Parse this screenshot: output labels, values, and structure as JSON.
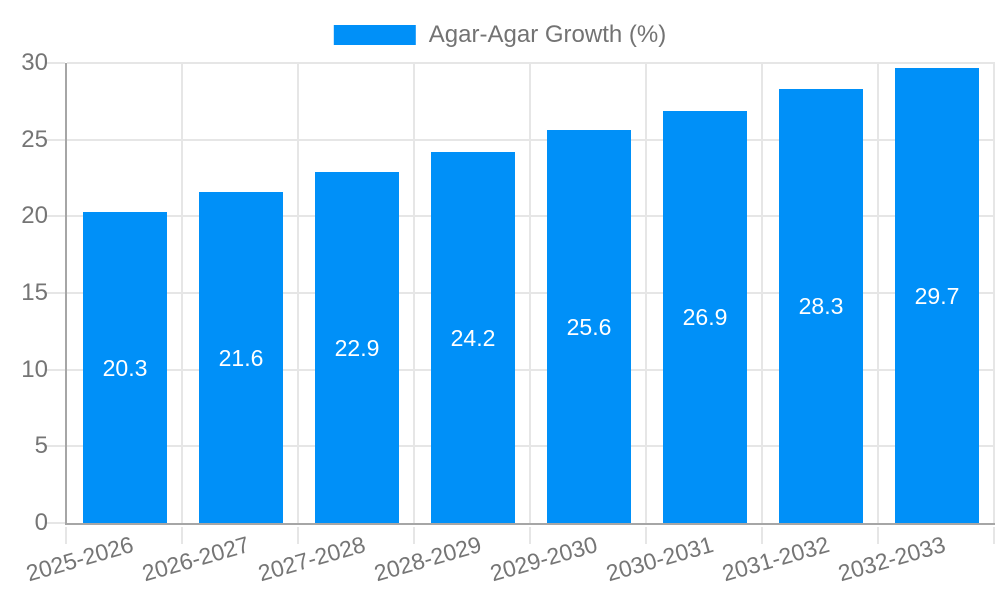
{
  "chart_data": {
    "type": "bar",
    "title": "Agar-Agar Growth (%)",
    "series_label": "Agar-Agar Growth (%)",
    "categories": [
      "2025-2026",
      "2026-2027",
      "2027-2028",
      "2028-2029",
      "2029-2030",
      "2030-2031",
      "2031-2032",
      "2032-2033"
    ],
    "values": [
      20.3,
      21.6,
      22.9,
      24.2,
      25.6,
      26.9,
      28.3,
      29.7
    ],
    "value_label_decimals": 1,
    "xlabel": "",
    "ylabel": "",
    "ylim": [
      0,
      30
    ],
    "yticks": [
      0,
      5,
      10,
      15,
      20,
      25,
      30
    ],
    "grid": true,
    "legend_position": "top-center",
    "colors": {
      "bar": "#0090f8",
      "grid": "#e6e6e6",
      "axis": "#a6a6a6",
      "tick_text": "#757575",
      "legend_text": "#737373",
      "value_text": "#ffffff"
    }
  }
}
